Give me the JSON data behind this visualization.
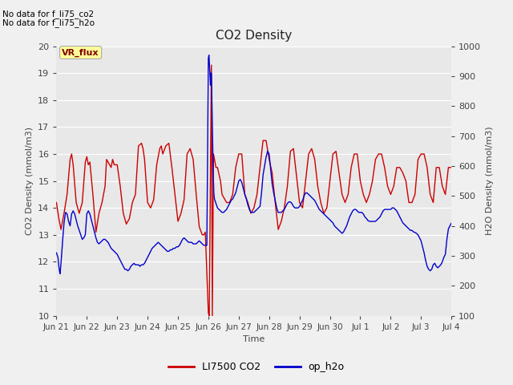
{
  "title": "CO2 Density",
  "xlabel": "Time",
  "ylabel_left": "CO2 Density (mmol/m3)",
  "ylabel_right": "H2O Density (mmol/m3)",
  "ylim_left": [
    10.0,
    20.0
  ],
  "ylim_right": [
    100,
    1000
  ],
  "yticks_left": [
    10.0,
    11.0,
    12.0,
    13.0,
    14.0,
    15.0,
    16.0,
    17.0,
    18.0,
    19.0,
    20.0
  ],
  "yticks_right": [
    100,
    200,
    300,
    400,
    500,
    600,
    700,
    800,
    900,
    1000
  ],
  "background_color": "#e8e8e8",
  "grid_color": "#ffffff",
  "annotation_lines": [
    "No data for f_li75_co2",
    "No data for f_li75_h2o"
  ],
  "vr_flux_label": "VR_flux",
  "legend_entries": [
    "LI7500 CO2",
    "op_h2o"
  ],
  "legend_colors": [
    "#cc0000",
    "#0000cc"
  ],
  "line_color_co2": "#cc0000",
  "line_color_h2o": "#0000cc",
  "xtick_labels": [
    "Jun 21",
    "Jun 22",
    "Jun 23",
    "Jun 24",
    "Jun 25",
    "Jun 26",
    "Jun 27",
    "Jun 28",
    "Jun 29",
    "Jun 30",
    "Jul 1",
    "Jul 2",
    "Jul 3",
    "Jul 4"
  ],
  "co2_data": [
    [
      0,
      14.2
    ],
    [
      0.08,
      13.6
    ],
    [
      0.15,
      13.2
    ],
    [
      0.25,
      13.8
    ],
    [
      0.35,
      14.5
    ],
    [
      0.45,
      15.8
    ],
    [
      0.5,
      16.0
    ],
    [
      0.55,
      15.6
    ],
    [
      0.65,
      14.2
    ],
    [
      0.75,
      13.8
    ],
    [
      0.85,
      14.2
    ],
    [
      0.95,
      15.7
    ],
    [
      1.0,
      15.9
    ],
    [
      1.05,
      15.6
    ],
    [
      1.1,
      15.7
    ],
    [
      1.2,
      14.5
    ],
    [
      1.3,
      13.1
    ],
    [
      1.4,
      13.8
    ],
    [
      1.5,
      14.2
    ],
    [
      1.6,
      14.8
    ],
    [
      1.65,
      15.8
    ],
    [
      1.7,
      15.7
    ],
    [
      1.8,
      15.5
    ],
    [
      1.85,
      15.8
    ],
    [
      1.9,
      15.6
    ],
    [
      2.0,
      15.6
    ],
    [
      2.1,
      14.8
    ],
    [
      2.2,
      13.8
    ],
    [
      2.3,
      13.4
    ],
    [
      2.4,
      13.6
    ],
    [
      2.5,
      14.2
    ],
    [
      2.6,
      14.5
    ],
    [
      2.7,
      16.3
    ],
    [
      2.8,
      16.4
    ],
    [
      2.85,
      16.2
    ],
    [
      2.9,
      15.8
    ],
    [
      3.0,
      14.2
    ],
    [
      3.1,
      14.0
    ],
    [
      3.2,
      14.3
    ],
    [
      3.3,
      15.6
    ],
    [
      3.4,
      16.2
    ],
    [
      3.45,
      16.3
    ],
    [
      3.5,
      16.0
    ],
    [
      3.6,
      16.3
    ],
    [
      3.7,
      16.4
    ],
    [
      3.8,
      15.5
    ],
    [
      3.9,
      14.5
    ],
    [
      4.0,
      13.5
    ],
    [
      4.1,
      13.8
    ],
    [
      4.2,
      14.3
    ],
    [
      4.3,
      16.0
    ],
    [
      4.4,
      16.2
    ],
    [
      4.5,
      15.8
    ],
    [
      4.6,
      14.5
    ],
    [
      4.7,
      13.3
    ],
    [
      4.8,
      13.0
    ],
    [
      4.85,
      13.0
    ],
    [
      4.9,
      13.1
    ],
    [
      5.0,
      10.1
    ],
    [
      5.03,
      10.0
    ],
    [
      5.1,
      19.3
    ],
    [
      5.13,
      10.0
    ],
    [
      5.17,
      16.0
    ],
    [
      5.25,
      15.5
    ],
    [
      5.3,
      15.5
    ],
    [
      5.4,
      15.0
    ],
    [
      5.45,
      14.5
    ],
    [
      5.5,
      14.4
    ],
    [
      5.6,
      14.2
    ],
    [
      5.7,
      14.2
    ],
    [
      5.8,
      14.5
    ],
    [
      5.9,
      15.5
    ],
    [
      6.0,
      16.0
    ],
    [
      6.1,
      16.0
    ],
    [
      6.2,
      14.5
    ],
    [
      6.3,
      14.2
    ],
    [
      6.4,
      13.8
    ],
    [
      6.5,
      14.0
    ],
    [
      6.6,
      14.5
    ],
    [
      6.7,
      15.5
    ],
    [
      6.8,
      16.5
    ],
    [
      6.9,
      16.5
    ],
    [
      7.0,
      15.8
    ],
    [
      7.1,
      15.3
    ],
    [
      7.2,
      14.2
    ],
    [
      7.3,
      13.2
    ],
    [
      7.4,
      13.5
    ],
    [
      7.5,
      14.0
    ],
    [
      7.6,
      14.8
    ],
    [
      7.7,
      16.1
    ],
    [
      7.8,
      16.2
    ],
    [
      7.9,
      15.2
    ],
    [
      8.0,
      14.2
    ],
    [
      8.1,
      14.0
    ],
    [
      8.2,
      15.0
    ],
    [
      8.3,
      16.0
    ],
    [
      8.4,
      16.2
    ],
    [
      8.5,
      15.8
    ],
    [
      8.6,
      14.8
    ],
    [
      8.7,
      14.2
    ],
    [
      8.8,
      13.8
    ],
    [
      8.9,
      14.0
    ],
    [
      9.0,
      15.0
    ],
    [
      9.1,
      16.0
    ],
    [
      9.2,
      16.1
    ],
    [
      9.3,
      15.3
    ],
    [
      9.4,
      14.5
    ],
    [
      9.5,
      14.2
    ],
    [
      9.6,
      14.5
    ],
    [
      9.7,
      15.5
    ],
    [
      9.8,
      16.0
    ],
    [
      9.9,
      16.0
    ],
    [
      10.0,
      15.0
    ],
    [
      10.1,
      14.5
    ],
    [
      10.2,
      14.2
    ],
    [
      10.3,
      14.5
    ],
    [
      10.4,
      15.0
    ],
    [
      10.5,
      15.8
    ],
    [
      10.6,
      16.0
    ],
    [
      10.7,
      16.0
    ],
    [
      10.8,
      15.5
    ],
    [
      10.9,
      14.8
    ],
    [
      11.0,
      14.5
    ],
    [
      11.1,
      14.8
    ],
    [
      11.2,
      15.5
    ],
    [
      11.3,
      15.5
    ],
    [
      11.4,
      15.3
    ],
    [
      11.5,
      15.0
    ],
    [
      11.6,
      14.2
    ],
    [
      11.7,
      14.2
    ],
    [
      11.8,
      14.5
    ],
    [
      11.9,
      15.8
    ],
    [
      12.0,
      16.0
    ],
    [
      12.1,
      16.0
    ],
    [
      12.2,
      15.5
    ],
    [
      12.3,
      14.5
    ],
    [
      12.4,
      14.2
    ],
    [
      12.5,
      15.5
    ],
    [
      12.6,
      15.5
    ],
    [
      12.7,
      14.8
    ],
    [
      12.8,
      14.5
    ],
    [
      12.9,
      15.5
    ],
    [
      13.0,
      15.5
    ]
  ],
  "h2o_data": [
    [
      0,
      310
    ],
    [
      0.05,
      295
    ],
    [
      0.08,
      265
    ],
    [
      0.1,
      250
    ],
    [
      0.12,
      240
    ],
    [
      0.15,
      275
    ],
    [
      0.2,
      345
    ],
    [
      0.25,
      410
    ],
    [
      0.3,
      445
    ],
    [
      0.35,
      440
    ],
    [
      0.4,
      415
    ],
    [
      0.45,
      400
    ],
    [
      0.5,
      440
    ],
    [
      0.55,
      450
    ],
    [
      0.6,
      440
    ],
    [
      0.65,
      420
    ],
    [
      0.7,
      400
    ],
    [
      0.75,
      385
    ],
    [
      0.8,
      370
    ],
    [
      0.85,
      355
    ],
    [
      0.9,
      360
    ],
    [
      0.95,
      370
    ],
    [
      1.0,
      440
    ],
    [
      1.05,
      450
    ],
    [
      1.1,
      440
    ],
    [
      1.15,
      420
    ],
    [
      1.2,
      400
    ],
    [
      1.25,
      380
    ],
    [
      1.3,
      360
    ],
    [
      1.35,
      345
    ],
    [
      1.4,
      340
    ],
    [
      1.45,
      345
    ],
    [
      1.5,
      350
    ],
    [
      1.55,
      355
    ],
    [
      1.6,
      355
    ],
    [
      1.65,
      350
    ],
    [
      1.7,
      345
    ],
    [
      1.75,
      335
    ],
    [
      1.8,
      325
    ],
    [
      1.85,
      320
    ],
    [
      1.9,
      315
    ],
    [
      1.95,
      310
    ],
    [
      2.0,
      305
    ],
    [
      2.05,
      295
    ],
    [
      2.1,
      285
    ],
    [
      2.15,
      275
    ],
    [
      2.2,
      265
    ],
    [
      2.25,
      255
    ],
    [
      2.3,
      255
    ],
    [
      2.35,
      250
    ],
    [
      2.4,
      255
    ],
    [
      2.45,
      265
    ],
    [
      2.5,
      270
    ],
    [
      2.55,
      275
    ],
    [
      2.6,
      270
    ],
    [
      2.65,
      270
    ],
    [
      2.7,
      270
    ],
    [
      2.75,
      265
    ],
    [
      2.8,
      270
    ],
    [
      2.85,
      270
    ],
    [
      2.9,
      275
    ],
    [
      2.95,
      285
    ],
    [
      3.0,
      295
    ],
    [
      3.05,
      305
    ],
    [
      3.1,
      315
    ],
    [
      3.15,
      325
    ],
    [
      3.2,
      330
    ],
    [
      3.25,
      335
    ],
    [
      3.3,
      340
    ],
    [
      3.35,
      345
    ],
    [
      3.4,
      340
    ],
    [
      3.45,
      335
    ],
    [
      3.5,
      330
    ],
    [
      3.55,
      325
    ],
    [
      3.6,
      320
    ],
    [
      3.65,
      315
    ],
    [
      3.7,
      315
    ],
    [
      3.75,
      320
    ],
    [
      3.8,
      320
    ],
    [
      3.85,
      325
    ],
    [
      3.9,
      325
    ],
    [
      3.95,
      330
    ],
    [
      4.0,
      330
    ],
    [
      4.05,
      335
    ],
    [
      4.1,
      345
    ],
    [
      4.15,
      355
    ],
    [
      4.2,
      360
    ],
    [
      4.25,
      355
    ],
    [
      4.3,
      350
    ],
    [
      4.35,
      345
    ],
    [
      4.4,
      345
    ],
    [
      4.45,
      345
    ],
    [
      4.5,
      340
    ],
    [
      4.55,
      340
    ],
    [
      4.6,
      340
    ],
    [
      4.65,
      345
    ],
    [
      4.7,
      350
    ],
    [
      4.75,
      345
    ],
    [
      4.8,
      340
    ],
    [
      4.85,
      335
    ],
    [
      4.9,
      335
    ],
    [
      4.95,
      335
    ],
    [
      5.0,
      960
    ],
    [
      5.02,
      970
    ],
    [
      5.05,
      910
    ],
    [
      5.07,
      870
    ],
    [
      5.08,
      910
    ],
    [
      5.1,
      910
    ],
    [
      5.12,
      800
    ],
    [
      5.14,
      680
    ],
    [
      5.16,
      580
    ],
    [
      5.18,
      510
    ],
    [
      5.2,
      490
    ],
    [
      5.25,
      475
    ],
    [
      5.3,
      460
    ],
    [
      5.35,
      455
    ],
    [
      5.4,
      450
    ],
    [
      5.45,
      445
    ],
    [
      5.5,
      445
    ],
    [
      5.55,
      450
    ],
    [
      5.6,
      455
    ],
    [
      5.65,
      465
    ],
    [
      5.7,
      475
    ],
    [
      5.75,
      485
    ],
    [
      5.8,
      490
    ],
    [
      5.85,
      500
    ],
    [
      5.9,
      510
    ],
    [
      5.95,
      530
    ],
    [
      6.0,
      550
    ],
    [
      6.05,
      555
    ],
    [
      6.1,
      545
    ],
    [
      6.15,
      525
    ],
    [
      6.2,
      505
    ],
    [
      6.25,
      490
    ],
    [
      6.3,
      470
    ],
    [
      6.35,
      455
    ],
    [
      6.4,
      445
    ],
    [
      6.45,
      445
    ],
    [
      6.5,
      445
    ],
    [
      6.55,
      450
    ],
    [
      6.6,
      455
    ],
    [
      6.65,
      460
    ],
    [
      6.7,
      465
    ],
    [
      6.75,
      510
    ],
    [
      6.8,
      570
    ],
    [
      6.85,
      600
    ],
    [
      6.9,
      630
    ],
    [
      6.95,
      650
    ],
    [
      7.0,
      640
    ],
    [
      7.05,
      590
    ],
    [
      7.1,
      540
    ],
    [
      7.15,
      510
    ],
    [
      7.2,
      485
    ],
    [
      7.25,
      460
    ],
    [
      7.3,
      445
    ],
    [
      7.35,
      445
    ],
    [
      7.4,
      445
    ],
    [
      7.45,
      450
    ],
    [
      7.5,
      455
    ],
    [
      7.55,
      465
    ],
    [
      7.6,
      475
    ],
    [
      7.65,
      480
    ],
    [
      7.7,
      480
    ],
    [
      7.75,
      475
    ],
    [
      7.8,
      465
    ],
    [
      7.85,
      460
    ],
    [
      7.9,
      460
    ],
    [
      7.95,
      460
    ],
    [
      8.0,
      465
    ],
    [
      8.05,
      475
    ],
    [
      8.1,
      485
    ],
    [
      8.15,
      500
    ],
    [
      8.2,
      510
    ],
    [
      8.25,
      510
    ],
    [
      8.3,
      505
    ],
    [
      8.35,
      500
    ],
    [
      8.4,
      495
    ],
    [
      8.45,
      490
    ],
    [
      8.5,
      485
    ],
    [
      8.55,
      475
    ],
    [
      8.6,
      465
    ],
    [
      8.65,
      455
    ],
    [
      8.7,
      450
    ],
    [
      8.75,
      445
    ],
    [
      8.8,
      440
    ],
    [
      8.85,
      435
    ],
    [
      8.9,
      430
    ],
    [
      8.95,
      425
    ],
    [
      9.0,
      420
    ],
    [
      9.05,
      415
    ],
    [
      9.1,
      410
    ],
    [
      9.15,
      400
    ],
    [
      9.2,
      395
    ],
    [
      9.25,
      390
    ],
    [
      9.3,
      385
    ],
    [
      9.35,
      380
    ],
    [
      9.4,
      375
    ],
    [
      9.45,
      380
    ],
    [
      9.5,
      390
    ],
    [
      9.55,
      400
    ],
    [
      9.6,
      415
    ],
    [
      9.65,
      430
    ],
    [
      9.7,
      440
    ],
    [
      9.75,
      450
    ],
    [
      9.8,
      455
    ],
    [
      9.85,
      455
    ],
    [
      9.9,
      450
    ],
    [
      9.95,
      445
    ],
    [
      10.0,
      445
    ],
    [
      10.05,
      445
    ],
    [
      10.1,
      440
    ],
    [
      10.15,
      430
    ],
    [
      10.2,
      425
    ],
    [
      10.25,
      418
    ],
    [
      10.3,
      415
    ],
    [
      10.35,
      415
    ],
    [
      10.4,
      415
    ],
    [
      10.45,
      415
    ],
    [
      10.5,
      415
    ],
    [
      10.55,
      420
    ],
    [
      10.6,
      425
    ],
    [
      10.65,
      430
    ],
    [
      10.7,
      440
    ],
    [
      10.75,
      450
    ],
    [
      10.8,
      455
    ],
    [
      10.85,
      455
    ],
    [
      10.9,
      455
    ],
    [
      10.95,
      455
    ],
    [
      11.0,
      455
    ],
    [
      11.05,
      460
    ],
    [
      11.1,
      460
    ],
    [
      11.15,
      455
    ],
    [
      11.2,
      450
    ],
    [
      11.25,
      440
    ],
    [
      11.3,
      430
    ],
    [
      11.35,
      420
    ],
    [
      11.4,
      410
    ],
    [
      11.45,
      405
    ],
    [
      11.5,
      400
    ],
    [
      11.55,
      395
    ],
    [
      11.6,
      390
    ],
    [
      11.65,
      385
    ],
    [
      11.7,
      385
    ],
    [
      11.75,
      380
    ],
    [
      11.8,
      378
    ],
    [
      11.85,
      375
    ],
    [
      11.9,
      370
    ],
    [
      11.95,
      360
    ],
    [
      12.0,
      350
    ],
    [
      12.05,
      330
    ],
    [
      12.1,
      310
    ],
    [
      12.15,
      285
    ],
    [
      12.2,
      265
    ],
    [
      12.25,
      255
    ],
    [
      12.3,
      250
    ],
    [
      12.35,
      255
    ],
    [
      12.4,
      270
    ],
    [
      12.45,
      275
    ],
    [
      12.5,
      265
    ],
    [
      12.55,
      260
    ],
    [
      12.6,
      265
    ],
    [
      12.65,
      270
    ],
    [
      12.7,
      280
    ],
    [
      12.75,
      295
    ],
    [
      12.8,
      305
    ],
    [
      12.85,
      355
    ],
    [
      12.9,
      390
    ],
    [
      12.95,
      400
    ],
    [
      13.0,
      410
    ]
  ]
}
